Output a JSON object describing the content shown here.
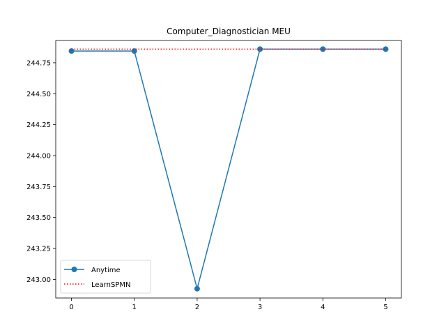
{
  "chart_data": {
    "type": "line",
    "title": "Computer_Diagnostician MEU",
    "xlabel": "",
    "ylabel": "",
    "x": [
      0,
      1,
      2,
      3,
      4,
      5
    ],
    "xticks": [
      "0",
      "1",
      "2",
      "3",
      "4",
      "5"
    ],
    "xlim": [
      -0.25,
      5.25
    ],
    "ylim": [
      242.85,
      244.93
    ],
    "yticks": [
      "243.00",
      "243.25",
      "243.50",
      "243.75",
      "244.00",
      "244.25",
      "244.50",
      "244.75"
    ],
    "grid": false,
    "legend_position": "lower-left",
    "series": [
      {
        "name": "Anytime",
        "style": "solid-marker",
        "color": "#1f77b4",
        "values": [
          244.845,
          244.845,
          242.925,
          244.86,
          244.86,
          244.86
        ]
      },
      {
        "name": "LearnSPMN",
        "style": "dotted",
        "color": "#ff0000",
        "values": [
          244.86,
          244.86,
          244.86,
          244.86,
          244.86,
          244.86
        ]
      }
    ]
  }
}
